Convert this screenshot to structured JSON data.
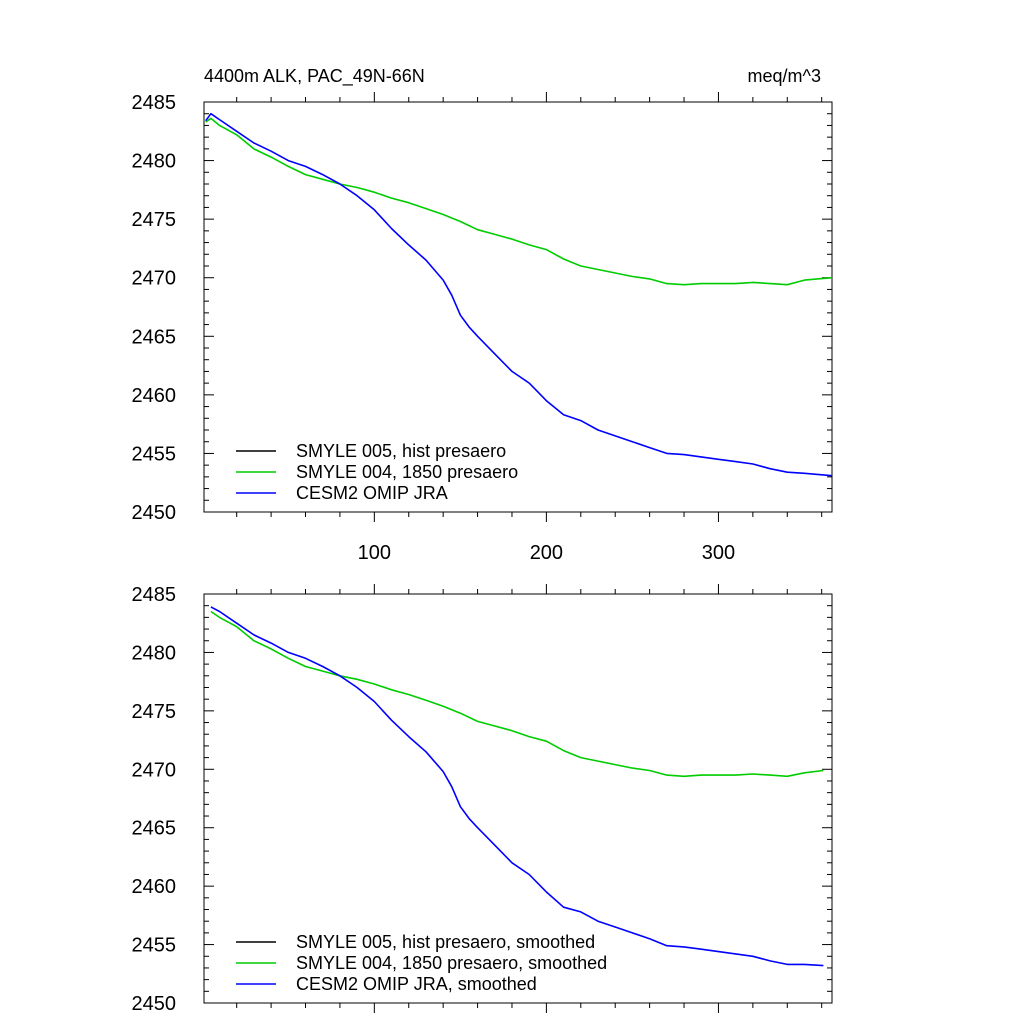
{
  "chart_data": [
    {
      "type": "line",
      "title_left": "4400m ALK, PAC_49N-66N",
      "title_right": "meq/m^3",
      "xlabel": "",
      "ylabel": "",
      "xlim": [
        1,
        366
      ],
      "ylim": [
        2450,
        2485
      ],
      "yticks": [
        "2450",
        "2455",
        "2460",
        "2465",
        "2470",
        "2475",
        "2480",
        "2485"
      ],
      "xticks": [
        "100",
        "200",
        "300"
      ],
      "legend_position": "bottom-left",
      "series": [
        {
          "name": "SMYLE 005, hist presaero",
          "color": "#000000",
          "x": [],
          "y": []
        },
        {
          "name": "SMYLE 004, 1850 presaero",
          "color": "#00cc00",
          "x": [
            2,
            5,
            10,
            20,
            30,
            40,
            50,
            60,
            70,
            80,
            90,
            100,
            110,
            120,
            130,
            140,
            150,
            160,
            170,
            180,
            190,
            200,
            210,
            220,
            230,
            240,
            250,
            260,
            270,
            280,
            290,
            300,
            310,
            320,
            330,
            340,
            350,
            366
          ],
          "y": [
            2483.3,
            2483.6,
            2483.0,
            2482.2,
            2481.0,
            2480.3,
            2479.5,
            2478.8,
            2478.4,
            2478.0,
            2477.7,
            2477.3,
            2476.8,
            2476.4,
            2475.9,
            2475.4,
            2474.8,
            2474.1,
            2473.7,
            2473.3,
            2472.8,
            2472.4,
            2471.6,
            2471.0,
            2470.7,
            2470.4,
            2470.1,
            2469.9,
            2469.5,
            2469.4,
            2469.5,
            2469.5,
            2469.5,
            2469.6,
            2469.5,
            2469.4,
            2469.8,
            2470.0
          ]
        },
        {
          "name": "CESM2 OMIP JRA",
          "color": "#0000ff",
          "x": [
            2,
            5,
            10,
            20,
            30,
            40,
            50,
            60,
            70,
            80,
            90,
            100,
            110,
            120,
            130,
            140,
            145,
            150,
            155,
            160,
            170,
            180,
            190,
            200,
            210,
            220,
            230,
            240,
            250,
            260,
            270,
            280,
            290,
            300,
            310,
            320,
            330,
            340,
            350,
            366
          ],
          "y": [
            2483.4,
            2484.0,
            2483.5,
            2482.5,
            2481.5,
            2480.8,
            2480.0,
            2479.5,
            2478.8,
            2478.0,
            2477.0,
            2475.8,
            2474.2,
            2472.8,
            2471.5,
            2469.8,
            2468.5,
            2466.8,
            2465.8,
            2465.0,
            2463.5,
            2462.0,
            2461.0,
            2459.5,
            2458.3,
            2457.8,
            2457.0,
            2456.5,
            2456.0,
            2455.5,
            2455.0,
            2454.9,
            2454.7,
            2454.5,
            2454.3,
            2454.1,
            2453.7,
            2453.4,
            2453.3,
            2453.1
          ]
        }
      ]
    },
    {
      "type": "line",
      "xlabel": "",
      "ylabel": "",
      "xlim": [
        1,
        366
      ],
      "ylim": [
        2450,
        2485
      ],
      "yticks": [
        "2450",
        "2455",
        "2460",
        "2465",
        "2470",
        "2475",
        "2480",
        "2485"
      ],
      "legend_position": "bottom-left",
      "series": [
        {
          "name": "SMYLE 005, hist presaero, smoothed",
          "color": "#000000",
          "x": [],
          "y": []
        },
        {
          "name": "SMYLE 004, 1850 presaero, smoothed",
          "color": "#00cc00",
          "x": [
            5,
            10,
            20,
            30,
            40,
            50,
            60,
            70,
            80,
            90,
            100,
            110,
            120,
            130,
            140,
            150,
            160,
            170,
            180,
            190,
            200,
            210,
            220,
            230,
            240,
            250,
            260,
            270,
            280,
            290,
            300,
            310,
            320,
            330,
            340,
            350,
            361
          ],
          "y": [
            2483.5,
            2483.0,
            2482.2,
            2481.0,
            2480.3,
            2479.5,
            2478.8,
            2478.4,
            2478.0,
            2477.7,
            2477.3,
            2476.8,
            2476.4,
            2475.9,
            2475.4,
            2474.8,
            2474.1,
            2473.7,
            2473.3,
            2472.8,
            2472.4,
            2471.6,
            2471.0,
            2470.7,
            2470.4,
            2470.1,
            2469.9,
            2469.5,
            2469.4,
            2469.5,
            2469.5,
            2469.5,
            2469.6,
            2469.5,
            2469.4,
            2469.7,
            2469.9
          ]
        },
        {
          "name": "CESM2 OMIP JRA, smoothed",
          "color": "#0000ff",
          "x": [
            5,
            10,
            20,
            30,
            40,
            50,
            60,
            70,
            80,
            90,
            100,
            110,
            120,
            130,
            140,
            145,
            150,
            155,
            160,
            170,
            180,
            190,
            200,
            210,
            220,
            230,
            240,
            250,
            260,
            270,
            280,
            290,
            300,
            310,
            320,
            330,
            340,
            350,
            361
          ],
          "y": [
            2483.9,
            2483.5,
            2482.5,
            2481.5,
            2480.8,
            2480.0,
            2479.5,
            2478.8,
            2478.0,
            2477.0,
            2475.8,
            2474.2,
            2472.8,
            2471.5,
            2469.8,
            2468.5,
            2466.8,
            2465.8,
            2465.0,
            2463.5,
            2462.0,
            2461.0,
            2459.5,
            2458.2,
            2457.8,
            2457.0,
            2456.5,
            2456.0,
            2455.5,
            2454.9,
            2454.8,
            2454.6,
            2454.4,
            2454.2,
            2454.0,
            2453.6,
            2453.3,
            2453.3,
            2453.2
          ]
        }
      ]
    }
  ]
}
